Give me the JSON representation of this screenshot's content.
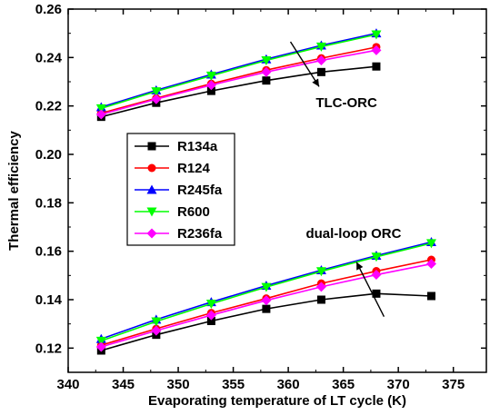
{
  "chart_data": {
    "type": "line",
    "xlabel": "Evaporating temperature of LT cycle (K)",
    "ylabel": "Thermal efficiency",
    "xlim": [
      340,
      378
    ],
    "ylim": [
      0.11,
      0.26
    ],
    "xticks": [
      340,
      345,
      350,
      355,
      360,
      365,
      370,
      375
    ],
    "yticks": [
      0.12,
      0.14,
      0.16,
      0.18,
      0.2,
      0.22,
      0.24,
      0.26
    ],
    "ytick_labels": [
      "0.12",
      "0.14",
      "0.16",
      "0.18",
      "0.20",
      "0.22",
      "0.24",
      "0.26"
    ],
    "legend_position": "center-left",
    "annotations": [
      {
        "text": "TLC-ORC"
      },
      {
        "text": "dual-loop ORC"
      }
    ],
    "groups": [
      {
        "name": "TLC-ORC",
        "x": [
          343,
          348,
          353,
          358,
          363,
          368
        ],
        "series": [
          {
            "name": "R134a",
            "color": "#000000",
            "marker": "square",
            "values": [
              0.2155,
              0.2213,
              0.2262,
              0.2305,
              0.234,
              0.2363
            ]
          },
          {
            "name": "R124",
            "color": "#ff0000",
            "marker": "circle",
            "values": [
              0.217,
              0.2232,
              0.2292,
              0.2348,
              0.2397,
              0.2443
            ]
          },
          {
            "name": "R245fa",
            "color": "#0000ff",
            "marker": "triangle-up",
            "values": [
              0.2195,
              0.2265,
              0.233,
              0.2393,
              0.245,
              0.25
            ]
          },
          {
            "name": "R600",
            "color": "#00ff00",
            "marker": "triangle-down",
            "values": [
              0.219,
              0.226,
              0.2325,
              0.2388,
              0.2445,
              0.2495
            ]
          },
          {
            "name": "R236fa",
            "color": "#ff00ff",
            "marker": "diamond",
            "values": [
              0.2165,
              0.2228,
              0.2286,
              0.234,
              0.2388,
              0.243
            ]
          }
        ]
      },
      {
        "name": "dual-loop ORC",
        "x": [
          343,
          348,
          353,
          358,
          363,
          368,
          373
        ],
        "series": [
          {
            "name": "R134a",
            "color": "#000000",
            "marker": "square",
            "values": [
              0.119,
              0.1255,
              0.1312,
              0.1362,
              0.14,
              0.1425,
              0.1415
            ]
          },
          {
            "name": "R124",
            "color": "#ff0000",
            "marker": "circle",
            "values": [
              0.1212,
              0.128,
              0.1345,
              0.1405,
              0.1467,
              0.1518,
              0.1565
            ]
          },
          {
            "name": "R245fa",
            "color": "#0000ff",
            "marker": "triangle-up",
            "values": [
              0.1238,
              0.1318,
              0.139,
              0.1458,
              0.1522,
              0.1582,
              0.1638
            ]
          },
          {
            "name": "R600",
            "color": "#00ff00",
            "marker": "triangle-down",
            "values": [
              0.123,
              0.131,
              0.1383,
              0.1452,
              0.1517,
              0.1577,
              0.1633
            ]
          },
          {
            "name": "R236fa",
            "color": "#ff00ff",
            "marker": "diamond",
            "values": [
              0.1205,
              0.1272,
              0.1336,
              0.1397,
              0.1453,
              0.1503,
              0.1548
            ]
          }
        ]
      }
    ]
  }
}
